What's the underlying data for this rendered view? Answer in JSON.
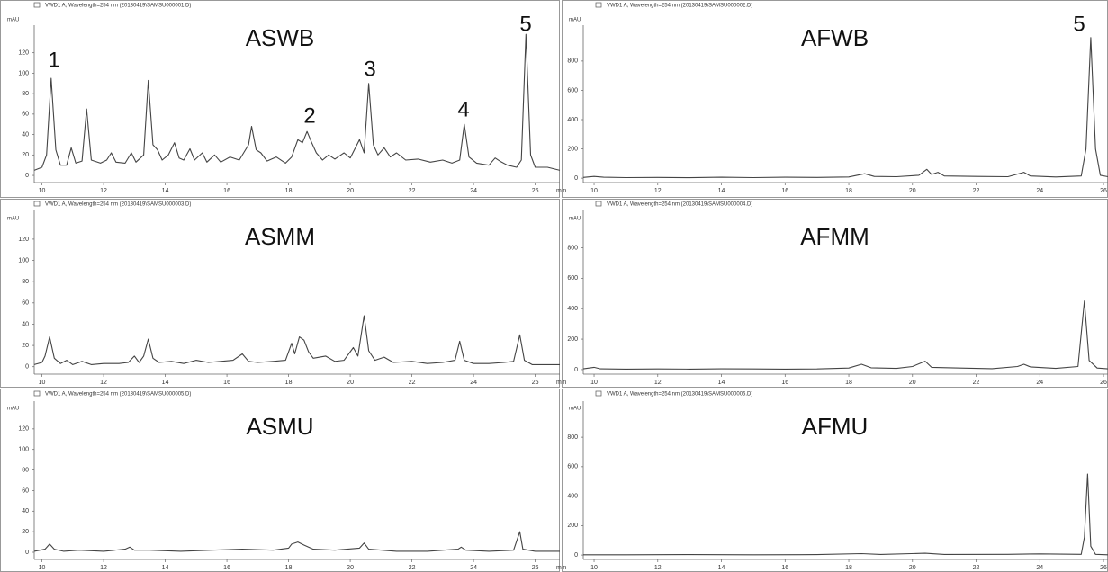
{
  "chart_data": [
    {
      "type": "line",
      "title": "ASWB",
      "header": "VWD1 A, Wavelength=254 nm (20130419\\SAMSU000001.D)",
      "y_label": "mAU",
      "x_label": "min",
      "annotations": [
        "1",
        "2",
        "3",
        "4",
        "5"
      ],
      "color": "#444444",
      "xlim": [
        9.75,
        26.8
      ],
      "ylim": [
        -7,
        147
      ],
      "xticks": [
        10,
        12,
        14,
        16,
        18,
        20,
        22,
        24,
        26
      ],
      "yticks": [
        0,
        20,
        40,
        60,
        80,
        100,
        120
      ],
      "x": [
        9.75,
        10.0,
        10.15,
        10.3,
        10.45,
        10.6,
        10.8,
        10.95,
        11.1,
        11.3,
        11.45,
        11.6,
        11.9,
        12.1,
        12.25,
        12.4,
        12.7,
        12.9,
        13.05,
        13.3,
        13.45,
        13.6,
        13.75,
        13.9,
        14.1,
        14.3,
        14.45,
        14.6,
        14.8,
        14.95,
        15.2,
        15.35,
        15.6,
        15.8,
        16.1,
        16.4,
        16.7,
        16.8,
        16.95,
        17.1,
        17.3,
        17.6,
        17.9,
        18.1,
        18.3,
        18.45,
        18.6,
        18.75,
        18.9,
        19.1,
        19.3,
        19.5,
        19.8,
        20.0,
        20.3,
        20.45,
        20.6,
        20.75,
        20.9,
        21.1,
        21.3,
        21.5,
        21.8,
        22.2,
        22.6,
        23.0,
        23.3,
        23.55,
        23.7,
        23.85,
        24.1,
        24.5,
        24.7,
        24.85,
        25.1,
        25.4,
        25.55,
        25.7,
        25.85,
        26.0,
        26.4,
        26.8
      ],
      "values": [
        5,
        8,
        20,
        95,
        25,
        10,
        10,
        27,
        12,
        14,
        65,
        15,
        12,
        15,
        22,
        13,
        12,
        22,
        13,
        20,
        93,
        30,
        25,
        15,
        20,
        32,
        17,
        15,
        26,
        15,
        22,
        13,
        20,
        13,
        18,
        15,
        30,
        48,
        25,
        22,
        14,
        18,
        12,
        18,
        35,
        32,
        43,
        32,
        22,
        15,
        20,
        16,
        22,
        17,
        35,
        22,
        90,
        30,
        20,
        27,
        18,
        22,
        15,
        16,
        13,
        15,
        12,
        15,
        50,
        18,
        12,
        10,
        17,
        14,
        10,
        8,
        15,
        138,
        20,
        8,
        8,
        5
      ]
    },
    {
      "type": "line",
      "title": "AFWB",
      "header": "VWD1 A, Wavelength=254 nm (20130419\\SAMSU000002.D)",
      "y_label": "mAU",
      "annotations": [
        "5"
      ],
      "color": "#444444",
      "xlim": [
        9.66,
        26.14
      ],
      "ylim": [
        -30,
        1045
      ],
      "xticks": [
        10,
        12,
        14,
        16,
        18,
        20,
        22,
        24,
        26
      ],
      "yticks": [
        0,
        200,
        400,
        600,
        800
      ],
      "x": [
        9.66,
        10.0,
        10.3,
        11,
        12,
        13,
        14,
        15,
        16,
        17,
        18,
        18.5,
        18.8,
        19.5,
        20.2,
        20.45,
        20.6,
        20.8,
        21.0,
        22.0,
        23.0,
        23.5,
        23.7,
        24.5,
        25.3,
        25.45,
        25.6,
        25.75,
        25.9,
        26.14
      ],
      "values": [
        5,
        12,
        6,
        4,
        5,
        3,
        6,
        4,
        6,
        5,
        8,
        30,
        12,
        10,
        20,
        60,
        25,
        40,
        15,
        12,
        10,
        40,
        15,
        8,
        15,
        200,
        960,
        200,
        20,
        10
      ]
    },
    {
      "type": "line",
      "title": "ASMM",
      "header": "VWD1 A, Wavelength=254 nm (20130419\\SAMSU000003.D)",
      "y_label": "mAU",
      "x_label": "min",
      "color": "#444444",
      "xlim": [
        9.75,
        26.8
      ],
      "ylim": [
        -7,
        147
      ],
      "xticks": [
        10,
        12,
        14,
        16,
        18,
        20,
        22,
        24,
        26
      ],
      "yticks": [
        0,
        20,
        40,
        60,
        80,
        100,
        120
      ],
      "x": [
        9.75,
        10.0,
        10.1,
        10.25,
        10.4,
        10.6,
        10.8,
        11.0,
        11.3,
        11.6,
        12.0,
        12.5,
        12.8,
        13.0,
        13.15,
        13.3,
        13.45,
        13.6,
        13.8,
        14.2,
        14.6,
        15.0,
        15.4,
        15.8,
        16.2,
        16.5,
        16.7,
        17.0,
        17.5,
        17.9,
        18.1,
        18.2,
        18.35,
        18.5,
        18.65,
        18.8,
        19.2,
        19.5,
        19.8,
        20.1,
        20.25,
        20.45,
        20.6,
        20.8,
        21.1,
        21.4,
        22.0,
        22.5,
        23.0,
        23.4,
        23.55,
        23.7,
        24.0,
        24.5,
        25.0,
        25.3,
        25.5,
        25.65,
        25.9,
        26.8
      ],
      "values": [
        2,
        4,
        10,
        28,
        8,
        3,
        6,
        2,
        5,
        2,
        3,
        3,
        4,
        10,
        4,
        10,
        26,
        8,
        4,
        5,
        3,
        6,
        4,
        5,
        6,
        12,
        5,
        4,
        5,
        6,
        22,
        12,
        28,
        25,
        14,
        8,
        10,
        5,
        6,
        18,
        10,
        48,
        15,
        6,
        9,
        4,
        5,
        3,
        4,
        6,
        24,
        6,
        3,
        3,
        4,
        5,
        30,
        6,
        2,
        2
      ]
    },
    {
      "type": "line",
      "title": "AFMM",
      "header": "VWD1 A, Wavelength=254 nm (20130419\\SAMSU000004.D)",
      "y_label": "mAU",
      "color": "#444444",
      "xlim": [
        9.66,
        26.14
      ],
      "ylim": [
        -30,
        1045
      ],
      "xticks": [
        10,
        12,
        14,
        16,
        18,
        20,
        22,
        24,
        26
      ],
      "yticks": [
        0,
        200,
        400,
        600,
        800
      ],
      "x": [
        9.66,
        10.0,
        10.2,
        11,
        12,
        13,
        14,
        15,
        16,
        17,
        18,
        18.4,
        18.7,
        19.5,
        20.0,
        20.4,
        20.6,
        21.5,
        22.5,
        23.3,
        23.5,
        23.7,
        24.5,
        25.2,
        25.4,
        25.55,
        25.8,
        26.14
      ],
      "values": [
        5,
        15,
        5,
        3,
        4,
        3,
        5,
        4,
        3,
        4,
        10,
        35,
        12,
        8,
        20,
        55,
        15,
        10,
        6,
        20,
        35,
        18,
        8,
        20,
        450,
        60,
        10,
        5
      ]
    },
    {
      "type": "line",
      "title": "ASMU",
      "header": "VWD1 A, Wavelength=254 nm (20130419\\SAMSU000005.D)",
      "y_label": "mAU",
      "x_label": "min",
      "color": "#444444",
      "xlim": [
        9.75,
        26.8
      ],
      "ylim": [
        -7,
        147
      ],
      "xticks": [
        10,
        12,
        14,
        16,
        18,
        20,
        22,
        24,
        26
      ],
      "yticks": [
        0,
        20,
        40,
        60,
        80,
        100,
        120
      ],
      "x": [
        9.75,
        10.1,
        10.25,
        10.4,
        10.7,
        11.2,
        12.0,
        12.7,
        12.85,
        13.0,
        13.5,
        14.5,
        15.5,
        16.5,
        17.5,
        18.0,
        18.1,
        18.3,
        18.5,
        18.8,
        19.5,
        20.3,
        20.45,
        20.6,
        21.5,
        22.5,
        23.5,
        23.6,
        23.75,
        24.5,
        25.3,
        25.5,
        25.6,
        26.0,
        26.8
      ],
      "values": [
        1,
        3,
        8,
        3,
        1,
        2,
        1,
        3,
        5,
        2,
        2,
        1,
        2,
        3,
        2,
        4,
        8,
        10,
        7,
        3,
        2,
        4,
        9,
        3,
        1,
        1,
        3,
        5,
        2,
        1,
        2,
        20,
        3,
        1,
        1
      ]
    },
    {
      "type": "line",
      "title": "AFMU",
      "header": "VWD1 A, Wavelength=254 nm (20130419\\SAMSU000006.D)",
      "y_label": "mAU",
      "color": "#444444",
      "xlim": [
        9.66,
        26.14
      ],
      "ylim": [
        -30,
        1045
      ],
      "xticks": [
        10,
        12,
        14,
        16,
        18,
        20,
        22,
        24,
        26
      ],
      "yticks": [
        0,
        200,
        400,
        600,
        800
      ],
      "x": [
        9.66,
        11,
        13,
        15,
        17,
        18.4,
        19,
        20.4,
        21,
        23,
        24,
        25.3,
        25.4,
        25.5,
        25.6,
        25.75,
        26.14
      ],
      "values": [
        2,
        2,
        3,
        2,
        3,
        10,
        4,
        12,
        4,
        5,
        8,
        5,
        120,
        550,
        60,
        5,
        2
      ]
    }
  ]
}
